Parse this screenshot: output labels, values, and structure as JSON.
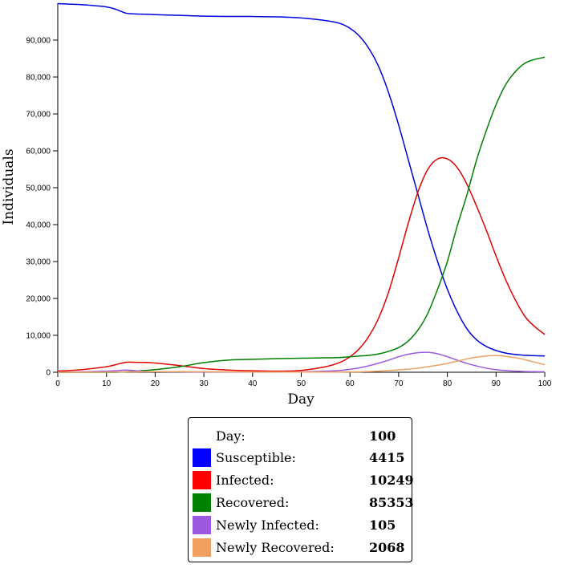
{
  "chart_data": {
    "type": "line",
    "xlabel": "Day",
    "ylabel": "Individuals",
    "xlim": [
      0,
      100
    ],
    "ylim": [
      0,
      100000
    ],
    "x_ticks": [
      "0",
      "10",
      "20",
      "30",
      "40",
      "50",
      "60",
      "70",
      "80",
      "90",
      "100"
    ],
    "y_ticks": [
      "0",
      "10,000",
      "20,000",
      "30,000",
      "40,000",
      "50,000",
      "60,000",
      "70,000",
      "80,000",
      "90,000"
    ],
    "x": [
      0,
      5,
      10,
      12,
      14,
      16,
      18,
      20,
      25,
      30,
      35,
      40,
      45,
      50,
      55,
      58,
      60,
      62,
      64,
      66,
      68,
      70,
      72,
      74,
      76,
      78,
      80,
      82,
      84,
      86,
      88,
      90,
      92,
      94,
      96,
      98,
      100
    ],
    "series": [
      {
        "name": "Susceptible",
        "color": "#0000dd",
        "values": [
          99900,
          99600,
          99000,
          98300,
          97300,
          97100,
          97000,
          96900,
          96700,
          96500,
          96400,
          96400,
          96300,
          96000,
          95300,
          94500,
          93200,
          91000,
          87500,
          82500,
          75500,
          67000,
          57500,
          48000,
          38500,
          30000,
          22500,
          16500,
          11800,
          8800,
          7000,
          5900,
          5200,
          4800,
          4600,
          4480,
          4415
        ]
      },
      {
        "name": "Infected",
        "color": "#e00000",
        "values": [
          300,
          700,
          1500,
          2100,
          2700,
          2700,
          2650,
          2500,
          1800,
          1000,
          600,
          400,
          300,
          500,
          1500,
          2700,
          4200,
          6500,
          10000,
          15000,
          22000,
          31000,
          40500,
          49000,
          55000,
          57800,
          57800,
          55500,
          51000,
          45000,
          38500,
          31500,
          25000,
          19500,
          15000,
          12300,
          10249
        ]
      },
      {
        "name": "Recovered",
        "color": "#008000",
        "values": [
          0,
          0,
          0,
          0,
          100,
          300,
          500,
          700,
          1500,
          2600,
          3300,
          3500,
          3700,
          3800,
          3900,
          4000,
          4200,
          4400,
          4600,
          5000,
          5700,
          6700,
          8500,
          11500,
          16000,
          22500,
          30000,
          39500,
          48000,
          57500,
          65500,
          72500,
          78000,
          81500,
          83800,
          84800,
          85353
        ]
      },
      {
        "name": "Newly Infected",
        "color": "#9b59e0",
        "values": [
          0,
          100,
          300,
          400,
          600,
          400,
          200,
          150,
          100,
          80,
          60,
          50,
          60,
          100,
          300,
          500,
          800,
          1200,
          1800,
          2500,
          3300,
          4200,
          4900,
          5300,
          5400,
          5000,
          4200,
          3300,
          2400,
          1700,
          1100,
          700,
          450,
          300,
          200,
          150,
          105
        ]
      },
      {
        "name": "Newly Recovered",
        "color": "#f0a060",
        "values": [
          0,
          0,
          50,
          80,
          100,
          120,
          140,
          150,
          150,
          130,
          100,
          80,
          70,
          60,
          50,
          60,
          80,
          120,
          200,
          300,
          450,
          650,
          850,
          1100,
          1500,
          1900,
          2400,
          3000,
          3600,
          4100,
          4400,
          4500,
          4300,
          3900,
          3400,
          2700,
          2068
        ]
      }
    ]
  },
  "legend": {
    "day": {
      "label": "Day:",
      "value": "100"
    },
    "items": [
      {
        "label": "Susceptible:",
        "value": "4415",
        "color": "#0000ff"
      },
      {
        "label": "Infected:",
        "value": "10249",
        "color": "#ff0000"
      },
      {
        "label": "Recovered:",
        "value": "85353",
        "color": "#008000"
      },
      {
        "label": "Newly Infected:",
        "value": "105",
        "color": "#9b59e0"
      },
      {
        "label": "Newly Recovered:",
        "value": "2068",
        "color": "#f0a060"
      }
    ]
  }
}
